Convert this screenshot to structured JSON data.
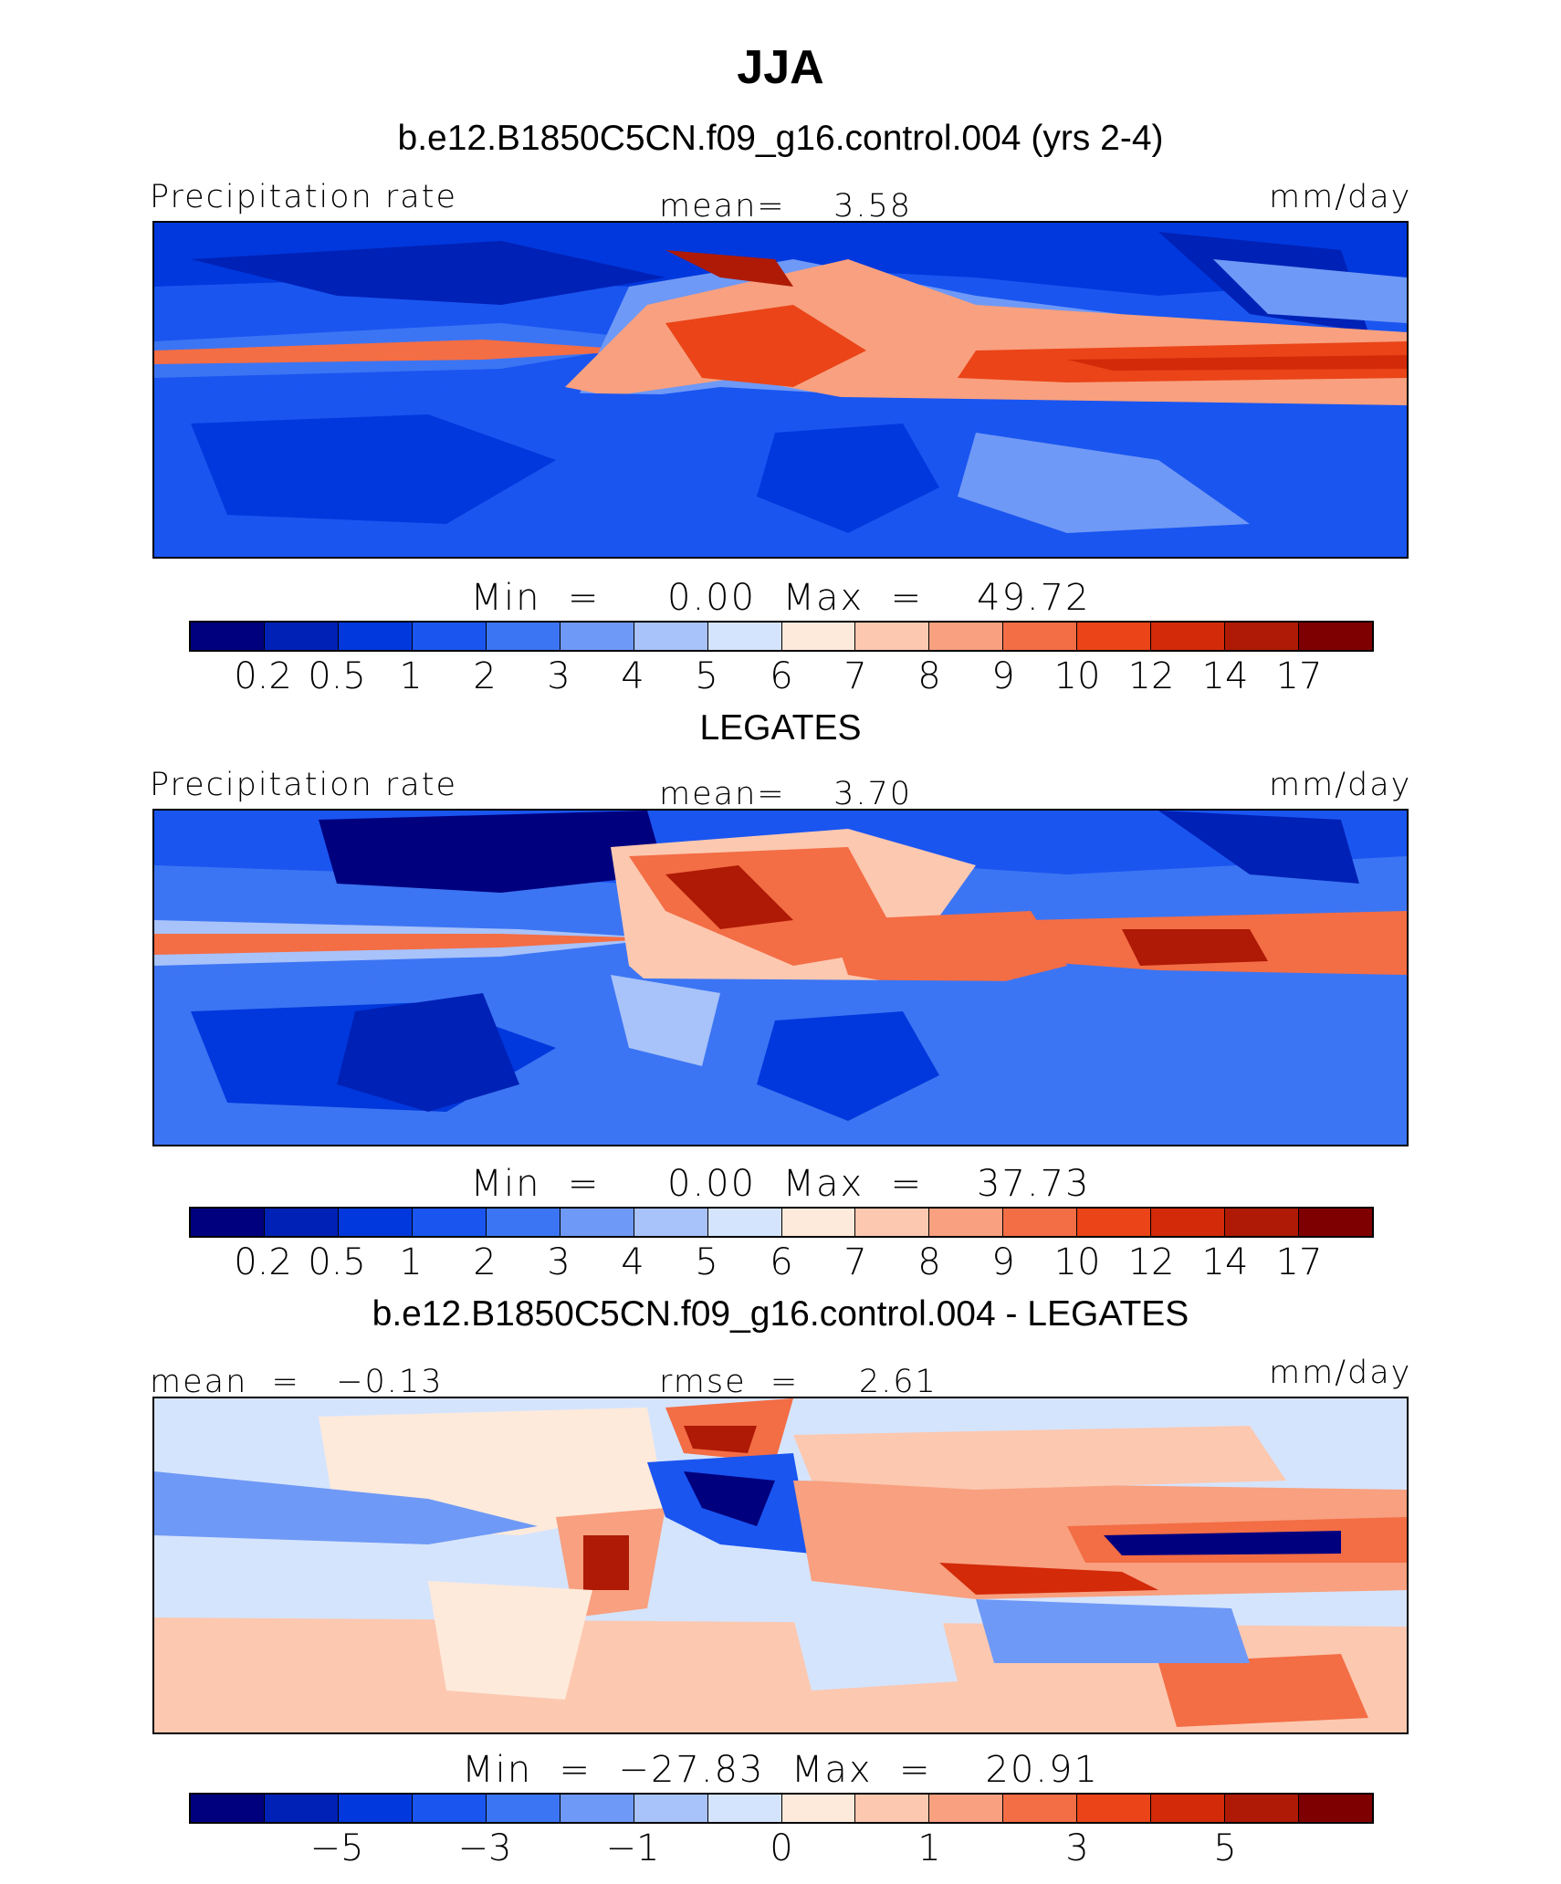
{
  "title": "JJA",
  "panels": [
    {
      "subtitle": "b.e12.B1850C5CN.f09_g16.control.004 (yrs 2-4)",
      "left_label": "Precipitation rate",
      "center_label": "mean=    3.58",
      "right_label": "mm/day",
      "minmax": "Min  =     0.00  Max  =    49.72",
      "ticks": [
        "0.2",
        "0.5",
        "1",
        "2",
        "3",
        "4",
        "5",
        "6",
        "7",
        "8",
        "9",
        "10",
        "12",
        "14",
        "17"
      ]
    },
    {
      "subtitle": "LEGATES",
      "left_label": "Precipitation rate",
      "center_label": "mean=    3.70",
      "right_label": "mm/day",
      "minmax": "Min  =     0.00  Max  =    37.73",
      "ticks": [
        "0.2",
        "0.5",
        "1",
        "2",
        "3",
        "4",
        "5",
        "6",
        "7",
        "8",
        "9",
        "10",
        "12",
        "14",
        "17"
      ]
    },
    {
      "subtitle": "b.e12.B1850C5CN.f09_g16.control.004 - LEGATES",
      "left_label": "mean  =   −0.13",
      "center_label": "rmse  =     2.61",
      "right_label": "mm/day",
      "minmax": "Min  =  −27.83  Max  =    20.91",
      "ticks": [
        "−5",
        "−3",
        "−1",
        "0",
        "1",
        "3",
        "5"
      ]
    }
  ],
  "colorbar_colors": [
    "#00007f",
    "#0021b6",
    "#0038dd",
    "#1a55f0",
    "#3c75f3",
    "#6f99f6",
    "#a8c2fa",
    "#d5e4fd",
    "#feeadb",
    "#fcc8b0",
    "#f8a07f",
    "#f36d45",
    "#ea4418",
    "#d32a0a",
    "#ae1a05",
    "#7f0000"
  ]
}
